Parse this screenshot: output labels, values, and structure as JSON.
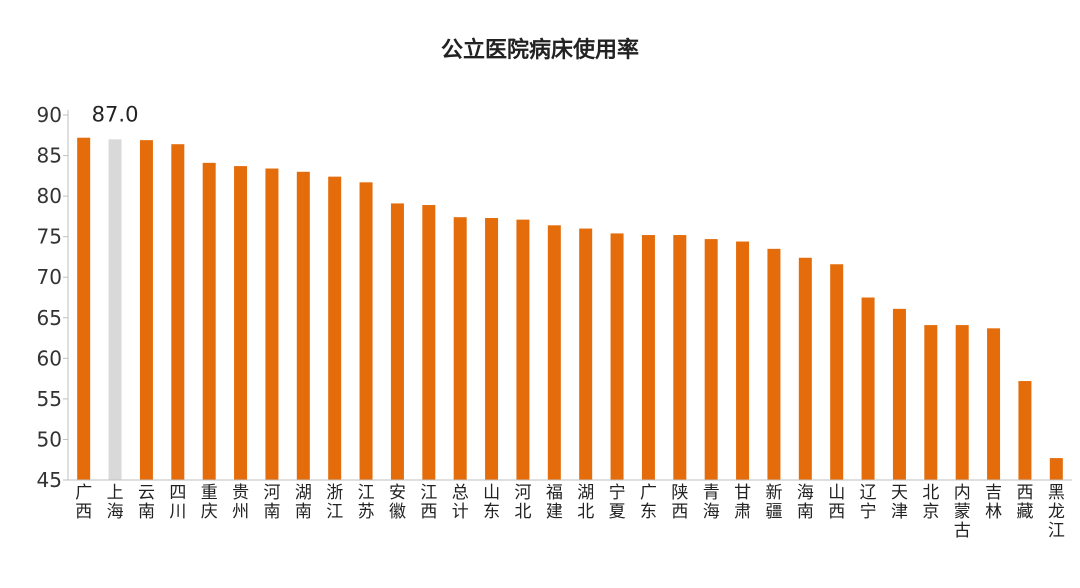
{
  "chart_data": {
    "type": "bar",
    "title": "公立医院病床使用率",
    "categories": [
      "广西",
      "上海",
      "云南",
      "四川",
      "重庆",
      "贵州",
      "河南",
      "湖南",
      "浙江",
      "江苏",
      "安徽",
      "江西",
      "总计",
      "山东",
      "河北",
      "福建",
      "湖北",
      "宁夏",
      "广东",
      "陕西",
      "青海",
      "甘肃",
      "新疆",
      "海南",
      "山西",
      "辽宁",
      "天津",
      "北京",
      "内蒙古",
      "吉林",
      "西藏",
      "黑龙江"
    ],
    "values": [
      87.2,
      87.0,
      86.9,
      86.4,
      84.1,
      83.7,
      83.4,
      83.0,
      82.4,
      81.7,
      79.1,
      78.9,
      77.4,
      77.3,
      77.1,
      76.4,
      76.0,
      75.4,
      75.2,
      75.2,
      74.7,
      74.4,
      73.5,
      72.4,
      71.6,
      67.5,
      66.1,
      64.1,
      64.1,
      63.7,
      57.2,
      47.7
    ],
    "highlight_index": 1,
    "data_labels": [
      {
        "index": 1,
        "text": "87.0"
      }
    ],
    "ylim": [
      45,
      90
    ],
    "yticks": [
      "45",
      "50",
      "55",
      "60",
      "65",
      "70",
      "75",
      "80",
      "85",
      "90"
    ],
    "xlabel": "",
    "ylabel": "",
    "grid": false,
    "legend": "none",
    "colors": {
      "bar": "#E46C0A",
      "highlight": "#D9D9D9",
      "axis": "#BFBFBF",
      "text": "#222222"
    }
  }
}
